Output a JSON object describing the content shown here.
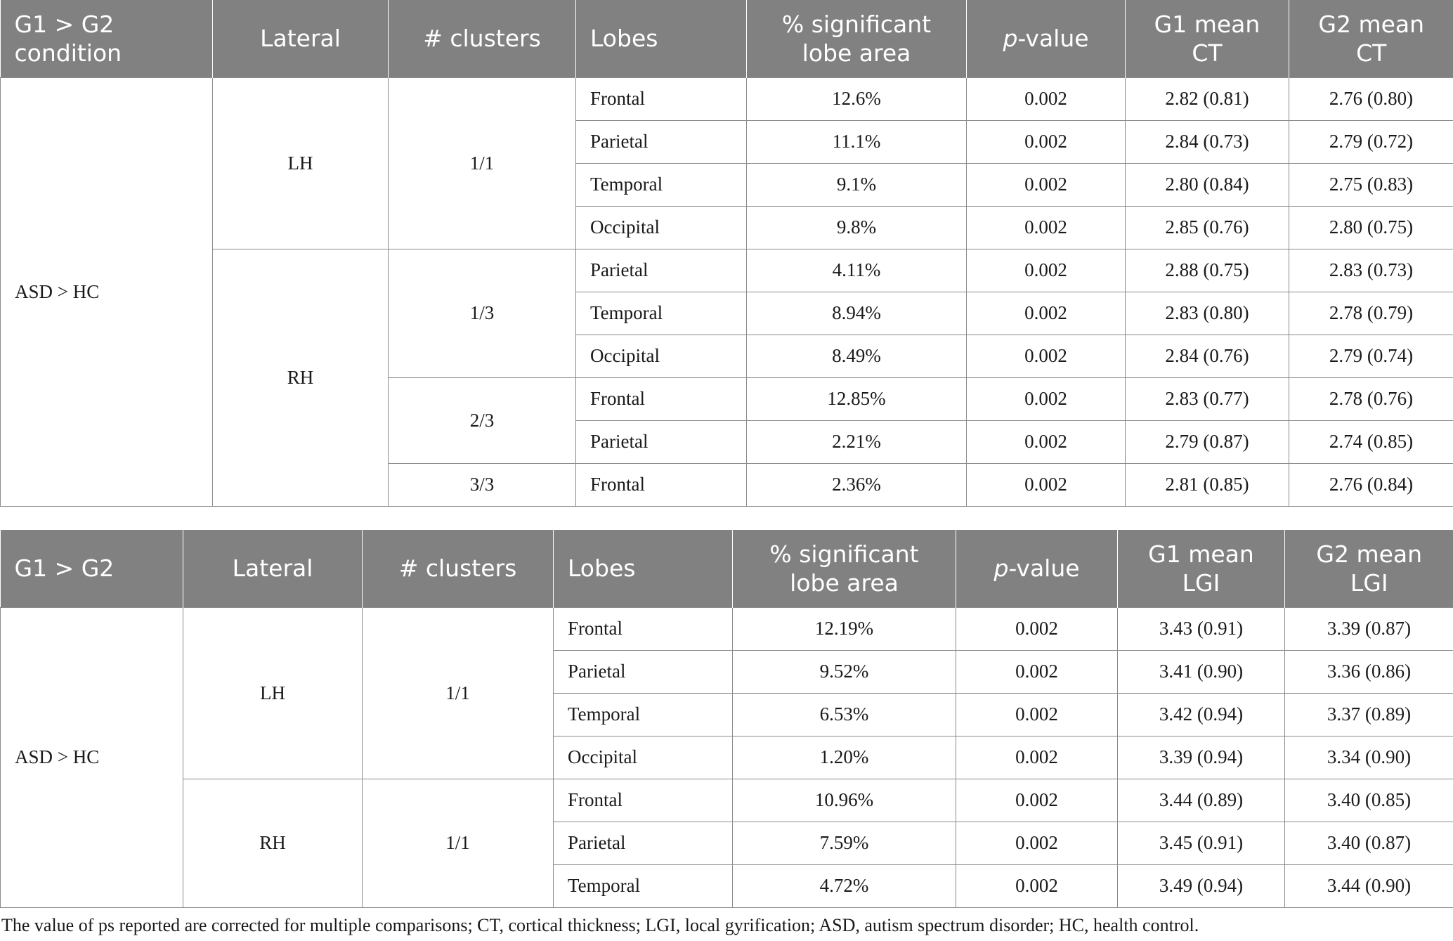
{
  "table1": {
    "headers": {
      "condition": [
        "G1 > G2",
        "condition"
      ],
      "lateral": "Lateral",
      "clusters": "# clusters",
      "lobes": "Lobes",
      "pct_area": [
        "% significant",
        "lobe area"
      ],
      "pvalue_italic": "p",
      "pvalue_rest": "-value",
      "g1": [
        "G1 mean",
        "CT"
      ],
      "g2": [
        "G2 mean",
        "CT"
      ]
    },
    "condition": "ASD > HC",
    "laterals": [
      "LH",
      "RH"
    ],
    "clusters": [
      "1/1",
      "1/3",
      "2/3",
      "3/3"
    ],
    "rows": [
      {
        "lobe": "Frontal",
        "pct": "12.6%",
        "p": "0.002",
        "g1": "2.82 (0.81)",
        "g2": "2.76 (0.80)"
      },
      {
        "lobe": "Parietal",
        "pct": "11.1%",
        "p": "0.002",
        "g1": "2.84 (0.73)",
        "g2": "2.79 (0.72)"
      },
      {
        "lobe": "Temporal",
        "pct": "9.1%",
        "p": "0.002",
        "g1": "2.80 (0.84)",
        "g2": "2.75 (0.83)"
      },
      {
        "lobe": "Occipital",
        "pct": "9.8%",
        "p": "0.002",
        "g1": "2.85 (0.76)",
        "g2": "2.80 (0.75)"
      },
      {
        "lobe": "Parietal",
        "pct": "4.11%",
        "p": "0.002",
        "g1": "2.88 (0.75)",
        "g2": "2.83 (0.73)"
      },
      {
        "lobe": "Temporal",
        "pct": "8.94%",
        "p": "0.002",
        "g1": "2.83 (0.80)",
        "g2": "2.78 (0.79)"
      },
      {
        "lobe": "Occipital",
        "pct": "8.49%",
        "p": "0.002",
        "g1": "2.84 (0.76)",
        "g2": "2.79 (0.74)"
      },
      {
        "lobe": "Frontal",
        "pct": "12.85%",
        "p": "0.002",
        "g1": "2.83 (0.77)",
        "g2": "2.78 (0.76)"
      },
      {
        "lobe": "Parietal",
        "pct": "2.21%",
        "p": "0.002",
        "g1": "2.79 (0.87)",
        "g2": "2.74 (0.85)"
      },
      {
        "lobe": "Frontal",
        "pct": "2.36%",
        "p": "0.002",
        "g1": "2.81 (0.85)",
        "g2": "2.76 (0.84)"
      }
    ]
  },
  "table2": {
    "headers": {
      "condition": "G1 > G2",
      "lateral": "Lateral",
      "clusters": "# clusters",
      "lobes": "Lobes",
      "pct_area": [
        "% significant",
        "lobe area"
      ],
      "pvalue_italic": "p",
      "pvalue_rest": "-value",
      "g1": [
        "G1 mean",
        "LGI"
      ],
      "g2": [
        "G2 mean",
        "LGI"
      ]
    },
    "condition": "ASD > HC",
    "laterals": [
      "LH",
      "RH"
    ],
    "clusters": [
      "1/1",
      "1/1"
    ],
    "rows": [
      {
        "lobe": "Frontal",
        "pct": "12.19%",
        "p": "0.002",
        "g1": "3.43 (0.91)",
        "g2": "3.39 (0.87)"
      },
      {
        "lobe": "Parietal",
        "pct": "9.52%",
        "p": "0.002",
        "g1": "3.41 (0.90)",
        "g2": "3.36 (0.86)"
      },
      {
        "lobe": "Temporal",
        "pct": "6.53%",
        "p": "0.002",
        "g1": "3.42 (0.94)",
        "g2": "3.37 (0.89)"
      },
      {
        "lobe": "Occipital",
        "pct": "1.20%",
        "p": "0.002",
        "g1": "3.39 (0.94)",
        "g2": "3.34 (0.90)"
      },
      {
        "lobe": "Frontal",
        "pct": "10.96%",
        "p": "0.002",
        "g1": "3.44 (0.89)",
        "g2": "3.40 (0.85)"
      },
      {
        "lobe": "Parietal",
        "pct": "7.59%",
        "p": "0.002",
        "g1": "3.45 (0.91)",
        "g2": "3.40 (0.87)"
      },
      {
        "lobe": "Temporal",
        "pct": "4.72%",
        "p": "0.002",
        "g1": "3.49 (0.94)",
        "g2": "3.44 (0.90)"
      }
    ]
  },
  "footnote": "The value of ps reported are corrected for multiple comparisons; CT, cortical thickness; LGI, local gyrification; ASD, autism spectrum disorder; HC, health control."
}
